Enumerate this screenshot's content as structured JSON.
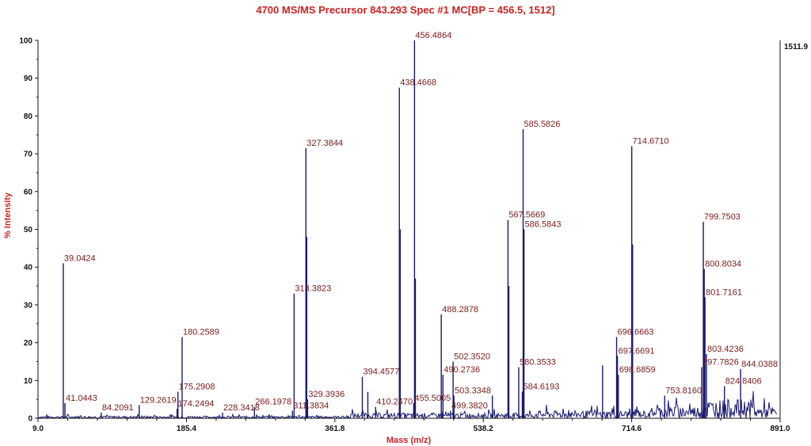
{
  "chart_data": {
    "type": "line",
    "title": "4700 MS/MS Precursor 843.293 Spec #1 MC[BP = 456.5, 1512]",
    "xlabel": "Mass (m/z)",
    "ylabel": "% Intensity",
    "xlim": [
      9.0,
      891.0
    ],
    "ylim": [
      0,
      100
    ],
    "x_ticks": [
      "9.0",
      "185.4",
      "361.8",
      "538.2",
      "714.6",
      "891.0"
    ],
    "y_ticks": [
      "0",
      "10",
      "20",
      "30",
      "40",
      "50",
      "60",
      "70",
      "80",
      "90",
      "100"
    ],
    "max_intensity_label": "1511.9",
    "grid": false,
    "colors": {
      "trace": "#1a1a6e",
      "labels": "#7a1a1a",
      "title": "#cc2222"
    },
    "peaks": [
      {
        "x": 39.0424,
        "y": 41.0,
        "label": "39.0424"
      },
      {
        "x": 41.0443,
        "y": 4.0,
        "label": "41.0443"
      },
      {
        "x": 84.2091,
        "y": 1.5,
        "label": "84.2091"
      },
      {
        "x": 129.2619,
        "y": 3.5,
        "label": "129.2619"
      },
      {
        "x": 174.2494,
        "y": 2.5,
        "label": "174.2494"
      },
      {
        "x": 175.2908,
        "y": 7.0,
        "label": "175.2908"
      },
      {
        "x": 180.2589,
        "y": 21.5,
        "label": "180.2589"
      },
      {
        "x": 228.3418,
        "y": 1.5,
        "label": "228.3418"
      },
      {
        "x": 266.1978,
        "y": 3.0,
        "label": "266.1978"
      },
      {
        "x": 311.3834,
        "y": 2.0,
        "label": "311.3834"
      },
      {
        "x": 313.3823,
        "y": 33.0,
        "label": "313.3823"
      },
      {
        "x": 327.3844,
        "y": 71.5,
        "label": "327.3844"
      },
      {
        "x": 329.3936,
        "y": 5.0,
        "label": "329.3936"
      },
      {
        "x": 394.4577,
        "y": 11.0,
        "label": "394.4577"
      },
      {
        "x": 410.247,
        "y": 3.0,
        "label": "410.2470"
      },
      {
        "x": 438.4668,
        "y": 87.5,
        "label": "438.4668"
      },
      {
        "x": 455.5005,
        "y": 4.0,
        "label": "455.5005"
      },
      {
        "x": 456.4864,
        "y": 100.0,
        "label": "456.4864"
      },
      {
        "x": 488.2878,
        "y": 27.5,
        "label": "488.2878"
      },
      {
        "x": 490.2736,
        "y": 11.5,
        "label": "490.2736"
      },
      {
        "x": 499.382,
        "y": 2.0,
        "label": "499.3820"
      },
      {
        "x": 502.352,
        "y": 15.0,
        "label": "502.3520"
      },
      {
        "x": 503.3348,
        "y": 6.0,
        "label": "503.3348"
      },
      {
        "x": 567.5669,
        "y": 52.5,
        "label": "567.5669"
      },
      {
        "x": 580.3533,
        "y": 13.5,
        "label": "580.3533"
      },
      {
        "x": 584.6193,
        "y": 7.0,
        "label": "584.6193"
      },
      {
        "x": 585.5826,
        "y": 76.5,
        "label": "585.5826"
      },
      {
        "x": 586.5843,
        "y": 50.0,
        "label": "586.5843"
      },
      {
        "x": 696.6663,
        "y": 21.5,
        "label": "696.6663"
      },
      {
        "x": 697.6691,
        "y": 16.5,
        "label": "697.6691"
      },
      {
        "x": 698.6859,
        "y": 11.5,
        "label": "698.6859"
      },
      {
        "x": 714.671,
        "y": 72.0,
        "label": "714.6710"
      },
      {
        "x": 753.816,
        "y": 6.0,
        "label": "753.8160"
      },
      {
        "x": 797.7826,
        "y": 13.5,
        "label": "797.7826"
      },
      {
        "x": 799.7503,
        "y": 52.0,
        "label": "799.7503"
      },
      {
        "x": 800.8034,
        "y": 39.5,
        "label": "800.8034"
      },
      {
        "x": 801.7161,
        "y": 32.0,
        "label": "801.7161"
      },
      {
        "x": 803.4236,
        "y": 17.0,
        "label": "803.4236"
      },
      {
        "x": 824.8406,
        "y": 8.5,
        "label": "824.8406"
      },
      {
        "x": 844.0388,
        "y": 13.0,
        "label": "844.0388"
      }
    ],
    "unlabeled_peaks": [
      {
        "x": 328.4,
        "y": 48.0
      },
      {
        "x": 439.5,
        "y": 50.0
      },
      {
        "x": 457.5,
        "y": 37.0
      },
      {
        "x": 568.6,
        "y": 35.0
      },
      {
        "x": 715.7,
        "y": 46.0
      },
      {
        "x": 680.0,
        "y": 14.0
      },
      {
        "x": 401.0,
        "y": 7.0
      },
      {
        "x": 549.0,
        "y": 6.0
      }
    ]
  }
}
